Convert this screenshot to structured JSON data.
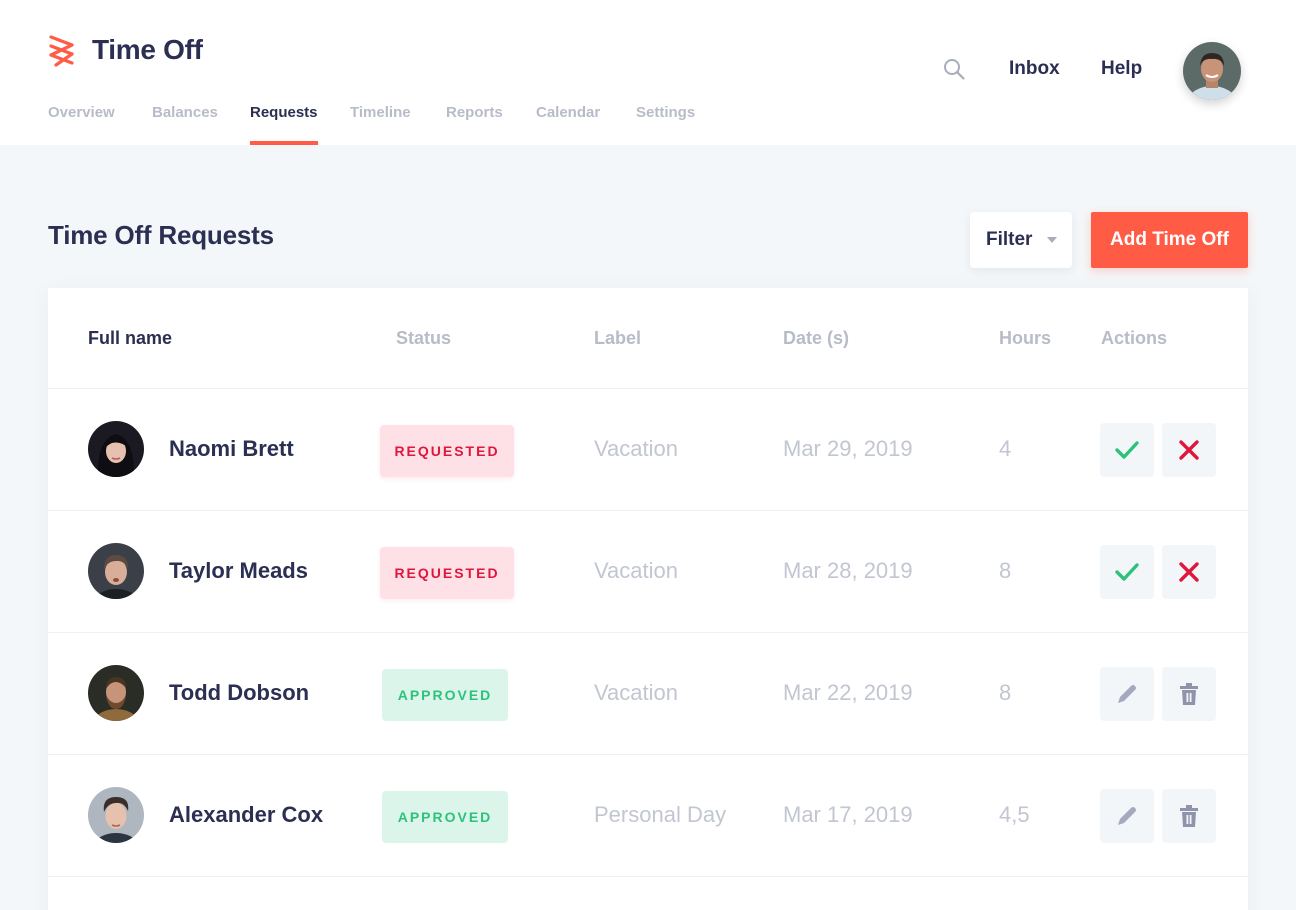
{
  "app": {
    "title": "Time Off"
  },
  "header": {
    "links": [
      "Inbox",
      "Help"
    ],
    "nav": [
      "Overview",
      "Balances",
      "Requests",
      "Timeline",
      "Reports",
      "Calendar",
      "Settings"
    ],
    "active_tab": "Requests"
  },
  "page": {
    "title": "Time Off Requests",
    "filter_label": "Filter",
    "add_label": "Add Time Off"
  },
  "table": {
    "columns": [
      "Full name",
      "Status",
      "Label",
      "Date (s)",
      "Hours",
      "Actions"
    ],
    "rows": [
      {
        "name": "Naomi Brett",
        "status": "REQUESTED",
        "label": "Vacation",
        "date": "Mar 29, 2019",
        "hours": "4",
        "actions": [
          "approve-icon",
          "reject-icon"
        ]
      },
      {
        "name": "Taylor Meads",
        "status": "REQUESTED",
        "label": "Vacation",
        "date": "Mar 28, 2019",
        "hours": "8",
        "actions": [
          "approve-icon",
          "reject-icon"
        ]
      },
      {
        "name": "Todd Dobson",
        "status": "APPROVED",
        "label": "Vacation",
        "date": "Mar 22, 2019",
        "hours": "8",
        "actions": [
          "edit-icon",
          "trash-icon"
        ]
      },
      {
        "name": "Alexander Cox",
        "status": "APPROVED",
        "label": "Personal Day",
        "date": "Mar 17, 2019",
        "hours": "4,5",
        "actions": [
          "edit-icon",
          "trash-icon"
        ]
      }
    ]
  },
  "colors": {
    "accent": "#ff5b45",
    "text_dark": "#2b2f52",
    "text_muted": "#c2c6d1",
    "requested_bg": "#fde1e6",
    "requested_text": "#e0163d",
    "approved_bg": "#dcf5ea",
    "approved_text": "#2cc27c"
  },
  "icons": [
    "logo-icon",
    "search-icon",
    "avatar",
    "chevron-down-icon",
    "approve-icon",
    "reject-icon",
    "edit-icon",
    "trash-icon"
  ]
}
